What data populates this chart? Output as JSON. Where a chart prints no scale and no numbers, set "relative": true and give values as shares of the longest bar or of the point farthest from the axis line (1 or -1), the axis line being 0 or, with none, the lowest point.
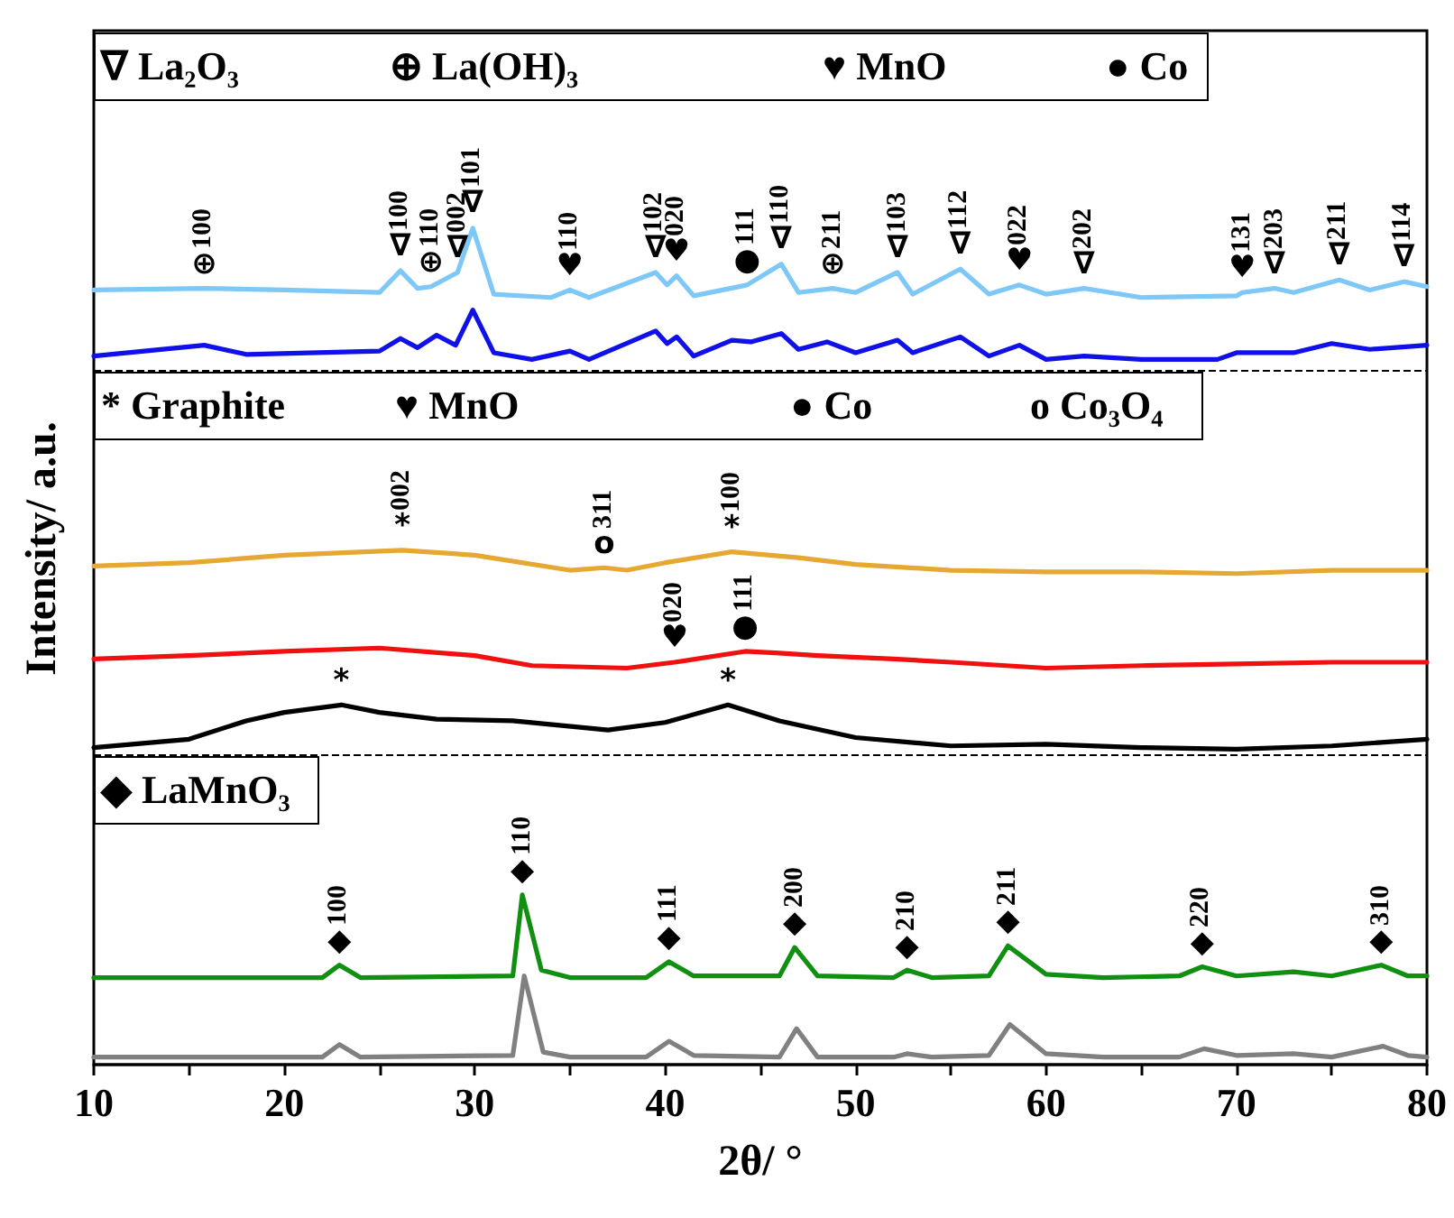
{
  "chart_data": {
    "type": "line",
    "relative": true,
    "xlabel": "2θ/ °",
    "ylabel": "Intensity/ a.u.",
    "xlim": [
      10,
      80
    ],
    "xticks": [
      10,
      20,
      30,
      40,
      50,
      60,
      70,
      80
    ],
    "grid": false,
    "marker": "none",
    "line_style": "solid",
    "series": [
      {
        "color": "#7ec8f8",
        "x": [
          10,
          15.8,
          20,
          25,
          26.1,
          27,
          27.7,
          29.1,
          29.9,
          31,
          34,
          35,
          36,
          39.5,
          40.1,
          40.6,
          41.5,
          44.3,
          46.1,
          47,
          48.8,
          50,
          52.2,
          53,
          55.5,
          57,
          58.6,
          60,
          62,
          65,
          70,
          70.3,
          72,
          73,
          75.4,
          77,
          78.8,
          80
        ],
        "values": [
          0.926,
          0.928,
          0.926,
          0.923,
          0.949,
          0.928,
          0.93,
          0.947,
          1.0,
          0.921,
          0.917,
          0.926,
          0.917,
          0.947,
          0.932,
          0.943,
          0.919,
          0.932,
          0.957,
          0.923,
          0.928,
          0.923,
          0.947,
          0.921,
          0.951,
          0.921,
          0.932,
          0.921,
          0.928,
          0.917,
          0.919,
          0.923,
          0.928,
          0.923,
          0.938,
          0.926,
          0.936,
          0.93
        ]
      },
      {
        "color": "#1010e8",
        "x": [
          10,
          15.8,
          18,
          25,
          26.1,
          27,
          28,
          29,
          29.9,
          31,
          33,
          35,
          36,
          39.5,
          40.1,
          40.6,
          41.5,
          43.5,
          44.5,
          46.1,
          47,
          48.5,
          50,
          52.2,
          53,
          55.5,
          57,
          58.6,
          60,
          62,
          65,
          69,
          70,
          73,
          75,
          77,
          80
        ],
        "values": [
          0.847,
          0.86,
          0.849,
          0.853,
          0.868,
          0.857,
          0.872,
          0.86,
          0.902,
          0.851,
          0.843,
          0.853,
          0.843,
          0.877,
          0.862,
          0.87,
          0.847,
          0.866,
          0.864,
          0.874,
          0.855,
          0.864,
          0.851,
          0.866,
          0.851,
          0.87,
          0.847,
          0.86,
          0.843,
          0.847,
          0.843,
          0.843,
          0.851,
          0.851,
          0.862,
          0.855,
          0.86
        ]
      },
      {
        "color": "#e6a832",
        "x": [
          10,
          15,
          20,
          26.2,
          30,
          35,
          36.8,
          38,
          40,
          43.5,
          47,
          50,
          55,
          60,
          65,
          70,
          75,
          80
        ],
        "values": [
          0.596,
          0.6,
          0.609,
          0.615,
          0.609,
          0.591,
          0.594,
          0.591,
          0.6,
          0.613,
          0.606,
          0.598,
          0.591,
          0.589,
          0.589,
          0.587,
          0.591,
          0.591
        ]
      },
      {
        "color": "#f01010",
        "x": [
          10,
          15,
          20,
          25,
          30,
          33,
          38,
          40.5,
          44.2,
          46,
          48,
          52,
          55,
          60,
          65,
          70,
          75,
          80
        ],
        "values": [
          0.485,
          0.489,
          0.494,
          0.498,
          0.489,
          0.477,
          0.474,
          0.481,
          0.494,
          0.492,
          0.489,
          0.485,
          0.481,
          0.474,
          0.477,
          0.479,
          0.481,
          0.481
        ]
      },
      {
        "color": "#000000",
        "x": [
          10,
          15,
          18,
          20,
          23,
          25,
          28,
          32,
          37,
          40,
          43.3,
          46,
          50,
          55,
          60,
          65,
          70,
          75,
          80
        ],
        "values": [
          0.379,
          0.389,
          0.411,
          0.421,
          0.43,
          0.421,
          0.413,
          0.411,
          0.4,
          0.409,
          0.43,
          0.411,
          0.391,
          0.381,
          0.383,
          0.379,
          0.377,
          0.381,
          0.389
        ]
      },
      {
        "color": "#109010",
        "x": [
          10,
          22,
          22.9,
          24,
          32,
          32.5,
          33.5,
          35,
          39,
          40.2,
          41.5,
          46,
          46.8,
          48,
          52,
          52.7,
          54,
          57,
          58,
          60,
          63,
          67,
          68.2,
          70,
          73,
          75,
          77.6,
          79,
          80
        ],
        "values": [
          0.104,
          0.104,
          0.119,
          0.104,
          0.106,
          0.203,
          0.113,
          0.104,
          0.104,
          0.123,
          0.106,
          0.106,
          0.14,
          0.106,
          0.104,
          0.113,
          0.104,
          0.106,
          0.142,
          0.108,
          0.104,
          0.106,
          0.117,
          0.106,
          0.111,
          0.106,
          0.119,
          0.106,
          0.106
        ]
      },
      {
        "color": "#808080",
        "x": [
          10,
          22,
          22.9,
          24,
          32,
          32.6,
          33.6,
          35,
          39,
          40.2,
          41.5,
          46,
          46.9,
          48,
          52,
          52.7,
          54,
          57,
          58.1,
          60,
          63,
          67,
          68.3,
          70,
          73,
          75,
          77.7,
          79,
          80
        ],
        "values": [
          0.009,
          0.009,
          0.024,
          0.009,
          0.011,
          0.106,
          0.015,
          0.009,
          0.009,
          0.028,
          0.011,
          0.009,
          0.043,
          0.009,
          0.009,
          0.013,
          0.009,
          0.011,
          0.048,
          0.013,
          0.009,
          0.009,
          0.019,
          0.011,
          0.013,
          0.009,
          0.022,
          0.011,
          0.009
        ]
      }
    ],
    "ref_lines": [
      {
        "axis": "y",
        "value": 0.83,
        "color": "#000000",
        "line_style": "dashed"
      },
      {
        "axis": "y",
        "value": 0.372,
        "color": "#000000",
        "line_style": "dashed"
      }
    ],
    "annotations": [
      "∇ La₂O₃",
      "⊕ La(OH)₃",
      "♥ MnO",
      "● Co",
      "* Graphite",
      "♥ MnO",
      "● Co",
      "o Co₃O₄",
      "◆ LaMnO₃",
      {
        "text": "⊕100",
        "x": 15.8,
        "y": 0.928
      },
      {
        "text": "∇100",
        "x": 26.1,
        "y": 0.949
      },
      {
        "text": "⊕110",
        "x": 27.7,
        "y": 0.93
      },
      {
        "text": "∇002",
        "x": 29.1,
        "y": 0.947
      },
      {
        "text": "∇101",
        "x": 29.9,
        "y": 1.0
      },
      {
        "text": "♥110",
        "x": 35,
        "y": 0.926
      },
      {
        "text": "∇102",
        "x": 39.5,
        "y": 0.947
      },
      {
        "text": "♥020",
        "x": 40.6,
        "y": 0.943
      },
      {
        "text": "●111",
        "x": 44.3,
        "y": 0.932
      },
      {
        "text": "∇110",
        "x": 46.1,
        "y": 0.957
      },
      {
        "text": "⊕211",
        "x": 48.8,
        "y": 0.928
      },
      {
        "text": "∇103",
        "x": 52.2,
        "y": 0.947
      },
      {
        "text": "∇112",
        "x": 55.5,
        "y": 0.951
      },
      {
        "text": "♥022",
        "x": 58.6,
        "y": 0.932
      },
      {
        "text": "∇202",
        "x": 62,
        "y": 0.928
      },
      {
        "text": "♥131",
        "x": 70.3,
        "y": 0.923
      },
      {
        "text": "∇203",
        "x": 72,
        "y": 0.928
      },
      {
        "text": "∇211",
        "x": 75.4,
        "y": 0.938
      },
      {
        "text": "∇114",
        "x": 78.8,
        "y": 0.936
      },
      {
        "text": "*002",
        "x": 26.2,
        "y": 0.615
      },
      {
        "text": "o311",
        "x": 36.8,
        "y": 0.594
      },
      {
        "text": "*100",
        "x": 43.5,
        "y": 0.613
      },
      {
        "text": "♥020",
        "x": 40.5,
        "y": 0.481
      },
      {
        "text": "●111",
        "x": 44.2,
        "y": 0.494
      },
      {
        "text": "*",
        "x": 23,
        "y": 0.43
      },
      {
        "text": "*",
        "x": 43.3,
        "y": 0.43
      },
      {
        "text": "◆100",
        "x": 22.9,
        "y": 0.119
      },
      {
        "text": "◆110",
        "x": 32.5,
        "y": 0.203
      },
      {
        "text": "◆111",
        "x": 40.2,
        "y": 0.123
      },
      {
        "text": "◆200",
        "x": 46.8,
        "y": 0.14
      },
      {
        "text": "◆210",
        "x": 52.7,
        "y": 0.113
      },
      {
        "text": "◆211",
        "x": 58,
        "y": 0.142
      },
      {
        "text": "◆220",
        "x": 68.2,
        "y": 0.117
      },
      {
        "text": "◆310",
        "x": 77.6,
        "y": 0.119
      }
    ]
  }
}
